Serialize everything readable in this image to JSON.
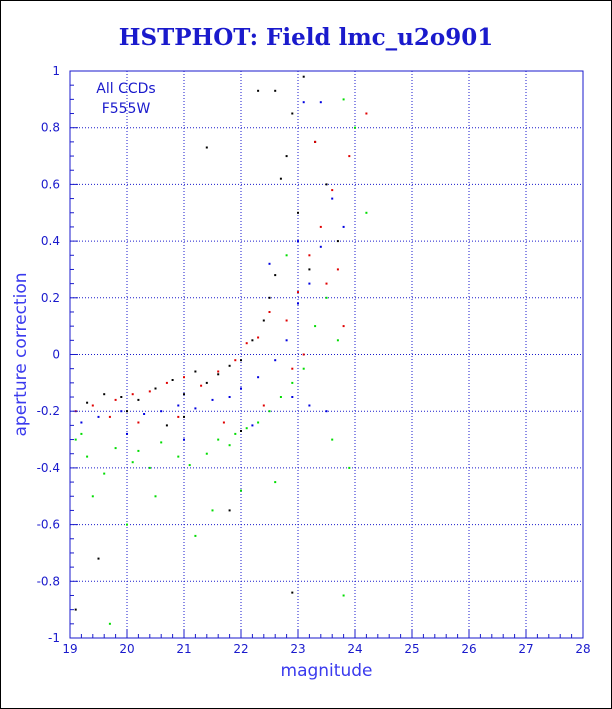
{
  "title": "HSTPHOT: Field lmc_u2o901",
  "colors": {
    "axis": "#1a1acc",
    "grid": "#1a1acc",
    "title": "#1a1acc",
    "points": [
      "#000000",
      "#e00000",
      "#0000e0",
      "#00dd00"
    ]
  },
  "chart_data": {
    "type": "scatter",
    "title": "HSTPHOT: Field lmc_u2o901",
    "xlabel": "magnitude",
    "ylabel": "aperture correction",
    "xlim": [
      19,
      28
    ],
    "ylim": [
      -1,
      1
    ],
    "xticks": [
      "19",
      "20",
      "21",
      "22",
      "23",
      "24",
      "25",
      "26",
      "27",
      "28"
    ],
    "yticks": [
      "-1",
      "-0.8",
      "-0.6",
      "-0.4",
      "-0.2",
      "0",
      "0.2",
      "0.4",
      "0.6",
      "0.8",
      "1"
    ],
    "grid": true,
    "annotations": [
      "All CCDs",
      "F555W"
    ],
    "series": [
      {
        "color": "#000000",
        "points": [
          [
            19.3,
            -0.17
          ],
          [
            19.6,
            -0.14
          ],
          [
            19.9,
            -0.15
          ],
          [
            20.2,
            -0.16
          ],
          [
            20.5,
            -0.12
          ],
          [
            20.8,
            -0.09
          ],
          [
            21.0,
            -0.14
          ],
          [
            21.2,
            -0.06
          ],
          [
            21.4,
            -0.1
          ],
          [
            21.6,
            -0.07
          ],
          [
            21.8,
            -0.04
          ],
          [
            22.0,
            -0.02
          ],
          [
            22.2,
            0.05
          ],
          [
            22.4,
            0.12
          ],
          [
            22.5,
            0.2
          ],
          [
            22.6,
            0.28
          ],
          [
            22.7,
            0.62
          ],
          [
            22.8,
            0.7
          ],
          [
            22.9,
            0.85
          ],
          [
            23.1,
            0.98
          ],
          [
            23.3,
            0.75
          ],
          [
            23.5,
            0.6
          ],
          [
            23.7,
            0.4
          ],
          [
            22.3,
            0.93
          ],
          [
            21.4,
            0.73
          ],
          [
            22.6,
            0.93
          ],
          [
            23.0,
            0.5
          ],
          [
            23.2,
            0.3
          ],
          [
            19.5,
            -0.72
          ],
          [
            19.1,
            -0.9
          ],
          [
            22.9,
            -0.84
          ],
          [
            21.8,
            -0.55
          ],
          [
            22.0,
            -0.27
          ],
          [
            21.0,
            -0.22
          ],
          [
            20.0,
            -0.2
          ],
          [
            20.7,
            -0.25
          ]
        ]
      },
      {
        "color": "#e00000",
        "points": [
          [
            19.1,
            -0.2
          ],
          [
            19.4,
            -0.18
          ],
          [
            19.8,
            -0.16
          ],
          [
            20.1,
            -0.14
          ],
          [
            20.4,
            -0.13
          ],
          [
            20.7,
            -0.1
          ],
          [
            21.0,
            -0.08
          ],
          [
            21.3,
            -0.11
          ],
          [
            21.6,
            -0.06
          ],
          [
            21.9,
            -0.02
          ],
          [
            22.1,
            0.04
          ],
          [
            22.3,
            0.06
          ],
          [
            22.5,
            0.15
          ],
          [
            22.8,
            0.12
          ],
          [
            23.0,
            0.22
          ],
          [
            23.2,
            0.35
          ],
          [
            23.4,
            0.45
          ],
          [
            23.6,
            0.58
          ],
          [
            23.9,
            0.7
          ],
          [
            24.2,
            0.85
          ],
          [
            23.8,
            0.1
          ],
          [
            23.5,
            0.25
          ],
          [
            23.1,
            0.0
          ],
          [
            22.9,
            -0.05
          ],
          [
            22.4,
            -0.18
          ],
          [
            21.7,
            -0.24
          ],
          [
            20.9,
            -0.22
          ],
          [
            20.2,
            -0.24
          ],
          [
            19.7,
            -0.22
          ],
          [
            23.3,
            0.75
          ],
          [
            23.7,
            0.3
          ]
        ]
      },
      {
        "color": "#0000e0",
        "points": [
          [
            19.2,
            -0.24
          ],
          [
            19.5,
            -0.22
          ],
          [
            19.9,
            -0.2
          ],
          [
            20.3,
            -0.21
          ],
          [
            20.6,
            -0.2
          ],
          [
            20.9,
            -0.18
          ],
          [
            21.2,
            -0.19
          ],
          [
            21.5,
            -0.16
          ],
          [
            21.8,
            -0.15
          ],
          [
            22.0,
            -0.12
          ],
          [
            22.3,
            -0.08
          ],
          [
            22.6,
            -0.02
          ],
          [
            22.8,
            0.05
          ],
          [
            23.0,
            0.18
          ],
          [
            23.2,
            0.25
          ],
          [
            23.4,
            0.38
          ],
          [
            23.1,
            0.89
          ],
          [
            23.4,
            0.89
          ],
          [
            23.6,
            0.55
          ],
          [
            23.8,
            0.45
          ],
          [
            22.9,
            -0.15
          ],
          [
            23.2,
            -0.18
          ],
          [
            23.5,
            -0.2
          ],
          [
            21.0,
            -0.3
          ],
          [
            20.0,
            -0.28
          ],
          [
            22.2,
            -0.25
          ],
          [
            22.5,
            0.32
          ],
          [
            23.0,
            0.4
          ]
        ]
      },
      {
        "color": "#00dd00",
        "points": [
          [
            19.1,
            -0.3
          ],
          [
            19.3,
            -0.36
          ],
          [
            19.6,
            -0.42
          ],
          [
            19.8,
            -0.33
          ],
          [
            20.1,
            -0.38
          ],
          [
            20.4,
            -0.4
          ],
          [
            20.6,
            -0.31
          ],
          [
            20.9,
            -0.36
          ],
          [
            21.1,
            -0.39
          ],
          [
            21.4,
            -0.35
          ],
          [
            21.6,
            -0.3
          ],
          [
            21.9,
            -0.28
          ],
          [
            22.1,
            -0.26
          ],
          [
            22.3,
            -0.24
          ],
          [
            22.5,
            -0.2
          ],
          [
            22.7,
            -0.15
          ],
          [
            22.9,
            -0.1
          ],
          [
            23.1,
            -0.05
          ],
          [
            23.3,
            0.1
          ],
          [
            23.5,
            0.2
          ],
          [
            23.7,
            0.05
          ],
          [
            23.8,
            0.9
          ],
          [
            24.0,
            0.8
          ],
          [
            24.2,
            0.5
          ],
          [
            23.9,
            -0.4
          ],
          [
            23.6,
            -0.3
          ],
          [
            23.8,
            -0.85
          ],
          [
            19.7,
            -0.95
          ],
          [
            20.5,
            -0.5
          ],
          [
            21.5,
            -0.55
          ],
          [
            22.0,
            -0.48
          ],
          [
            19.4,
            -0.5
          ],
          [
            20.0,
            -0.6
          ],
          [
            21.2,
            -0.64
          ],
          [
            22.6,
            -0.45
          ],
          [
            19.2,
            -0.28
          ],
          [
            20.2,
            -0.34
          ],
          [
            21.8,
            -0.32
          ],
          [
            22.8,
            0.35
          ]
        ]
      }
    ]
  }
}
